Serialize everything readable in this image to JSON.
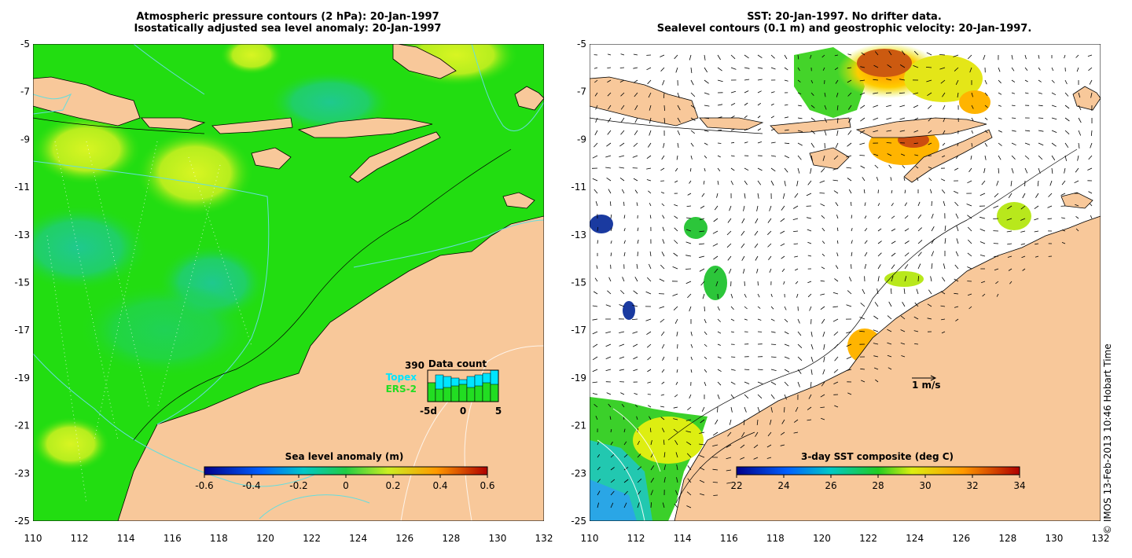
{
  "left_panel": {
    "title_line1": "Atmospheric pressure contours (2 hPa): 20-Jan-1997",
    "title_line2": "Isostatically adjusted sea level anomaly: 20-Jan-1997",
    "colorbar": {
      "title": "Sea level anomaly (m)",
      "ticks": [
        "-0.6",
        "-0.4",
        "-0.2",
        "0",
        "0.2",
        "0.4",
        "0.6"
      ]
    },
    "data_count": {
      "total": "390",
      "title": "Data count",
      "legend_topex": "Topex",
      "legend_ers2": "ERS-2",
      "axis_labels": [
        "-5d",
        "0",
        "5"
      ],
      "topex_values": [
        0.6,
        0.85,
        0.8,
        0.75,
        0.7,
        0.8,
        0.85,
        0.9,
        1.0
      ],
      "ers2_values": [
        0.75,
        0.4,
        0.45,
        0.5,
        0.55,
        0.45,
        0.5,
        0.6,
        0.55
      ],
      "colors": {
        "topex": "#00e5ff",
        "ers2": "#22dd22"
      }
    }
  },
  "right_panel": {
    "title_line1": "SST: 20-Jan-1997. No drifter data.",
    "title_line2": "Sealevel contours (0.1 m) and geostrophic velocity: 20-Jan-1997.",
    "colorbar": {
      "title": "3-day SST composite (deg C)",
      "ticks": [
        "22",
        "24",
        "26",
        "28",
        "30",
        "32",
        "34"
      ]
    },
    "velocity_scale_label": "1 m/s"
  },
  "axes": {
    "lon_ticks": [
      "110",
      "112",
      "114",
      "116",
      "118",
      "120",
      "122",
      "124",
      "126",
      "128",
      "130",
      "132"
    ],
    "lat_ticks": [
      "-5",
      "-7",
      "-9",
      "-11",
      "-13",
      "-15",
      "-17",
      "-19",
      "-21",
      "-23",
      "-25"
    ]
  },
  "credit": "© IMOS 13-Feb-2013 10:46 Hobart Time",
  "colors": {
    "land": "#f8c89a",
    "sea_green": "#22dd11",
    "sea_teal": "#1fcf7a",
    "sea_yellow": "#ccf21e",
    "contour_cyan": "#66dddd"
  }
}
